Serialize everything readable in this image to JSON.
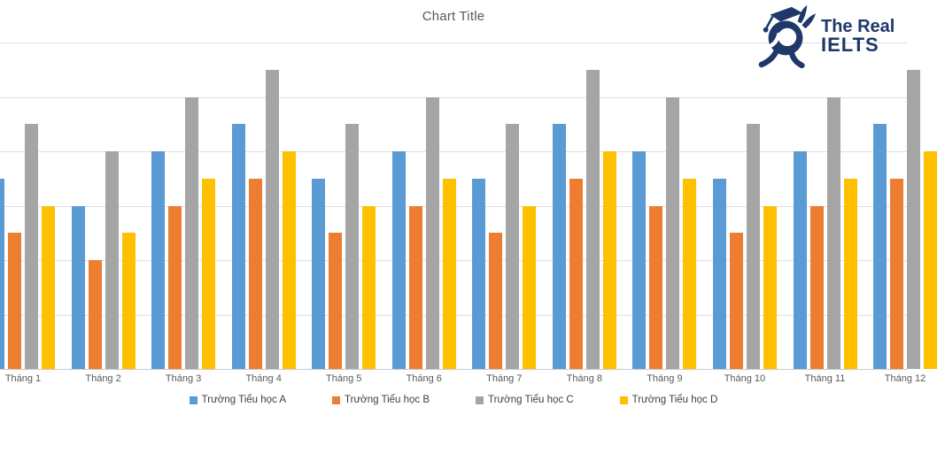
{
  "title": "Chart Title",
  "logo": {
    "line1": "The Real",
    "line2": "IELTS",
    "color": "#1d3869"
  },
  "chart_data": {
    "type": "bar",
    "title": "Chart Title",
    "categories": [
      "Tháng 1",
      "Tháng 2",
      "Tháng 3",
      "Tháng 4",
      "Tháng 5",
      "Tháng 6",
      "Tháng 7",
      "Tháng 8",
      "Tháng 9",
      "Tháng 10",
      "Tháng 11",
      "Tháng 12"
    ],
    "series": [
      {
        "name": "Trường Tiểu học A",
        "color": "#5B9BD5",
        "values": [
          35,
          30,
          40,
          45,
          35,
          40,
          35,
          45,
          40,
          35,
          40,
          45
        ]
      },
      {
        "name": "Trường Tiểu học B",
        "color": "#ED7D31",
        "values": [
          25,
          20,
          30,
          35,
          25,
          30,
          25,
          35,
          30,
          25,
          30,
          35
        ]
      },
      {
        "name": "Trường Tiểu học C",
        "color": "#A5A5A5",
        "values": [
          45,
          40,
          50,
          55,
          45,
          50,
          45,
          55,
          50,
          45,
          50,
          55
        ]
      },
      {
        "name": "Trường Tiểu học D",
        "color": "#FFC000",
        "values": [
          30,
          25,
          35,
          40,
          30,
          35,
          30,
          40,
          35,
          30,
          35,
          40
        ]
      }
    ],
    "xlabel": "",
    "ylabel": "",
    "ylim": [
      0,
      60
    ],
    "grid_step": 10,
    "grid": true,
    "legend_position": "bottom",
    "colors": {
      "title_text": "#595959",
      "axis_text": "#595959",
      "gridline": "#e0e0e0",
      "axis_line": "#c9c9c9",
      "legend_text": "#404040"
    }
  }
}
